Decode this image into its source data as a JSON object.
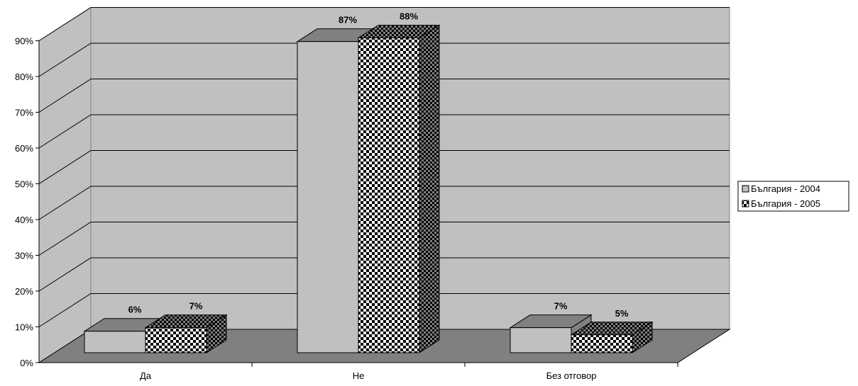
{
  "chart_data": {
    "type": "bar",
    "style": "3d-clustered-column",
    "categories": [
      "Да",
      "Не",
      "Без отговор"
    ],
    "series": [
      {
        "name": "България - 2004",
        "values": [
          6,
          87,
          7
        ],
        "labels": [
          "6%",
          "87%",
          "7%"
        ],
        "fill": "solid",
        "color": "#C0C0C0"
      },
      {
        "name": "България - 2005",
        "values": [
          7,
          88,
          5
        ],
        "labels": [
          "7%",
          "88%",
          "5%"
        ],
        "fill": "checkerboard",
        "color": "#000000"
      }
    ],
    "yticks": [
      "0%",
      "10%",
      "20%",
      "30%",
      "40%",
      "50%",
      "60%",
      "70%",
      "80%",
      "90%"
    ],
    "ylim": [
      0,
      90
    ],
    "grid": true,
    "legend_position": "right",
    "colors": {
      "wall": "#C0C0C0",
      "floor": "#808080",
      "bar_side": "#808080"
    }
  }
}
